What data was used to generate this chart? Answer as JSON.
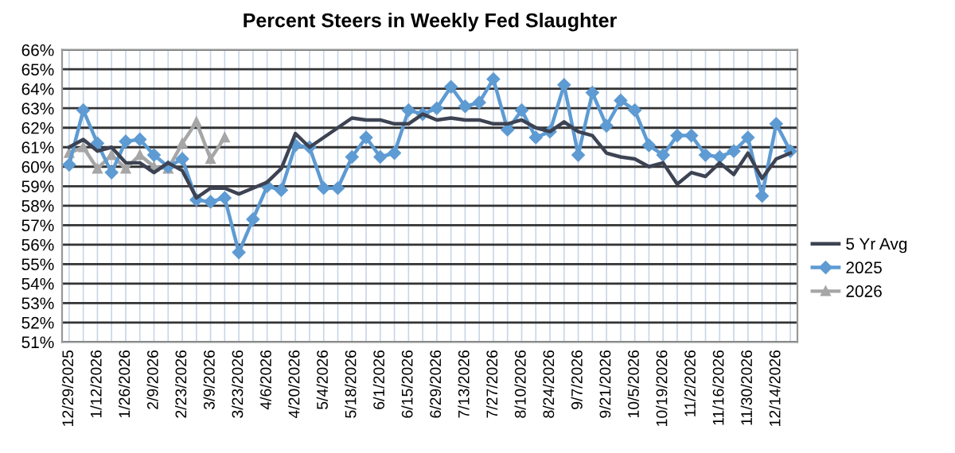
{
  "chart_data": {
    "type": "line",
    "title": "Percent Steers in Weekly Fed Slaughter",
    "categories": [
      "12/29/2025",
      null,
      "1/12/2026",
      null,
      "1/26/2026",
      null,
      "2/9/2026",
      null,
      "2/23/2026",
      null,
      "3/9/2026",
      null,
      "3/23/2026",
      null,
      "4/6/2026",
      null,
      "4/20/2026",
      null,
      "5/4/2026",
      null,
      "5/18/2026",
      null,
      "6/1/2026",
      null,
      "6/15/2026",
      null,
      "6/29/2026",
      null,
      "7/13/2026",
      null,
      "7/27/2026",
      null,
      "8/10/2026",
      null,
      "8/24/2026",
      null,
      "9/7/2026",
      null,
      "9/21/2026",
      null,
      "10/5/2026",
      null,
      "10/19/2026",
      null,
      "11/2/2026",
      null,
      "11/16/2026",
      null,
      "11/30/2026",
      null,
      "12/14/2026",
      null
    ],
    "series": [
      {
        "name": "5 Yr Avg",
        "color": "#3d4352",
        "marker": "none",
        "values": [
          61.0,
          61.4,
          60.8,
          61.0,
          60.2,
          60.2,
          59.7,
          60.2,
          59.8,
          58.4,
          58.9,
          58.9,
          58.6,
          58.9,
          59.2,
          59.9,
          61.7,
          61.0,
          61.5,
          62.0,
          62.5,
          62.4,
          62.4,
          62.2,
          62.2,
          62.7,
          62.4,
          62.5,
          62.4,
          62.4,
          62.2,
          62.2,
          62.4,
          62.0,
          61.8,
          62.3,
          61.8,
          61.6,
          60.7,
          60.5,
          60.4,
          60.0,
          60.2,
          59.1,
          59.7,
          59.5,
          60.2,
          59.6,
          60.7,
          59.4,
          60.4,
          60.7
        ]
      },
      {
        "name": "2025",
        "color": "#5e9bd3",
        "marker": "diamond",
        "values": [
          60.1,
          62.9,
          61.2,
          59.7,
          61.3,
          61.4,
          60.6,
          60.0,
          60.4,
          58.3,
          58.2,
          58.4,
          55.6,
          57.3,
          59.0,
          58.8,
          61.1,
          61.0,
          58.9,
          58.9,
          60.5,
          61.5,
          60.5,
          60.7,
          62.9,
          62.7,
          63.0,
          64.1,
          63.1,
          63.3,
          64.5,
          61.9,
          62.9,
          61.5,
          61.8,
          64.2,
          60.6,
          63.8,
          62.1,
          63.4,
          62.9,
          61.1,
          60.6,
          61.6,
          61.6,
          60.6,
          60.5,
          60.8,
          61.5,
          58.5,
          62.2,
          60.8
        ]
      },
      {
        "name": "2026",
        "color": "#a6a6a6",
        "marker": "triangle",
        "values": [
          60.7,
          61.0,
          59.9,
          60.6,
          59.9,
          60.6,
          60.0,
          59.9,
          61.2,
          62.3,
          60.4,
          61.5,
          null,
          null,
          null,
          null,
          null,
          null,
          null,
          null,
          null,
          null,
          null,
          null,
          null,
          null,
          null,
          null,
          null,
          null,
          null,
          null,
          null,
          null,
          null,
          null,
          null,
          null,
          null,
          null,
          null,
          null,
          null,
          null,
          null,
          null,
          null,
          null,
          null,
          null,
          null,
          null
        ]
      }
    ],
    "ylim": [
      51,
      66
    ],
    "yticks": [
      {
        "value": 51,
        "label": "51%"
      },
      {
        "value": 52,
        "label": "52%"
      },
      {
        "value": 53,
        "label": "53%"
      },
      {
        "value": 54,
        "label": "54%"
      },
      {
        "value": 55,
        "label": "55%"
      },
      {
        "value": 56,
        "label": "56%"
      },
      {
        "value": 57,
        "label": "57%"
      },
      {
        "value": 58,
        "label": "58%"
      },
      {
        "value": 59,
        "label": "59%"
      },
      {
        "value": 60,
        "label": "60%"
      },
      {
        "value": 61,
        "label": "61%"
      },
      {
        "value": 62,
        "label": "62%"
      },
      {
        "value": 63,
        "label": "63%"
      },
      {
        "value": 64,
        "label": "64%"
      },
      {
        "value": 65,
        "label": "65%"
      },
      {
        "value": 66,
        "label": "66%"
      }
    ],
    "grid": true,
    "legend": "right",
    "line_style": "solid"
  }
}
